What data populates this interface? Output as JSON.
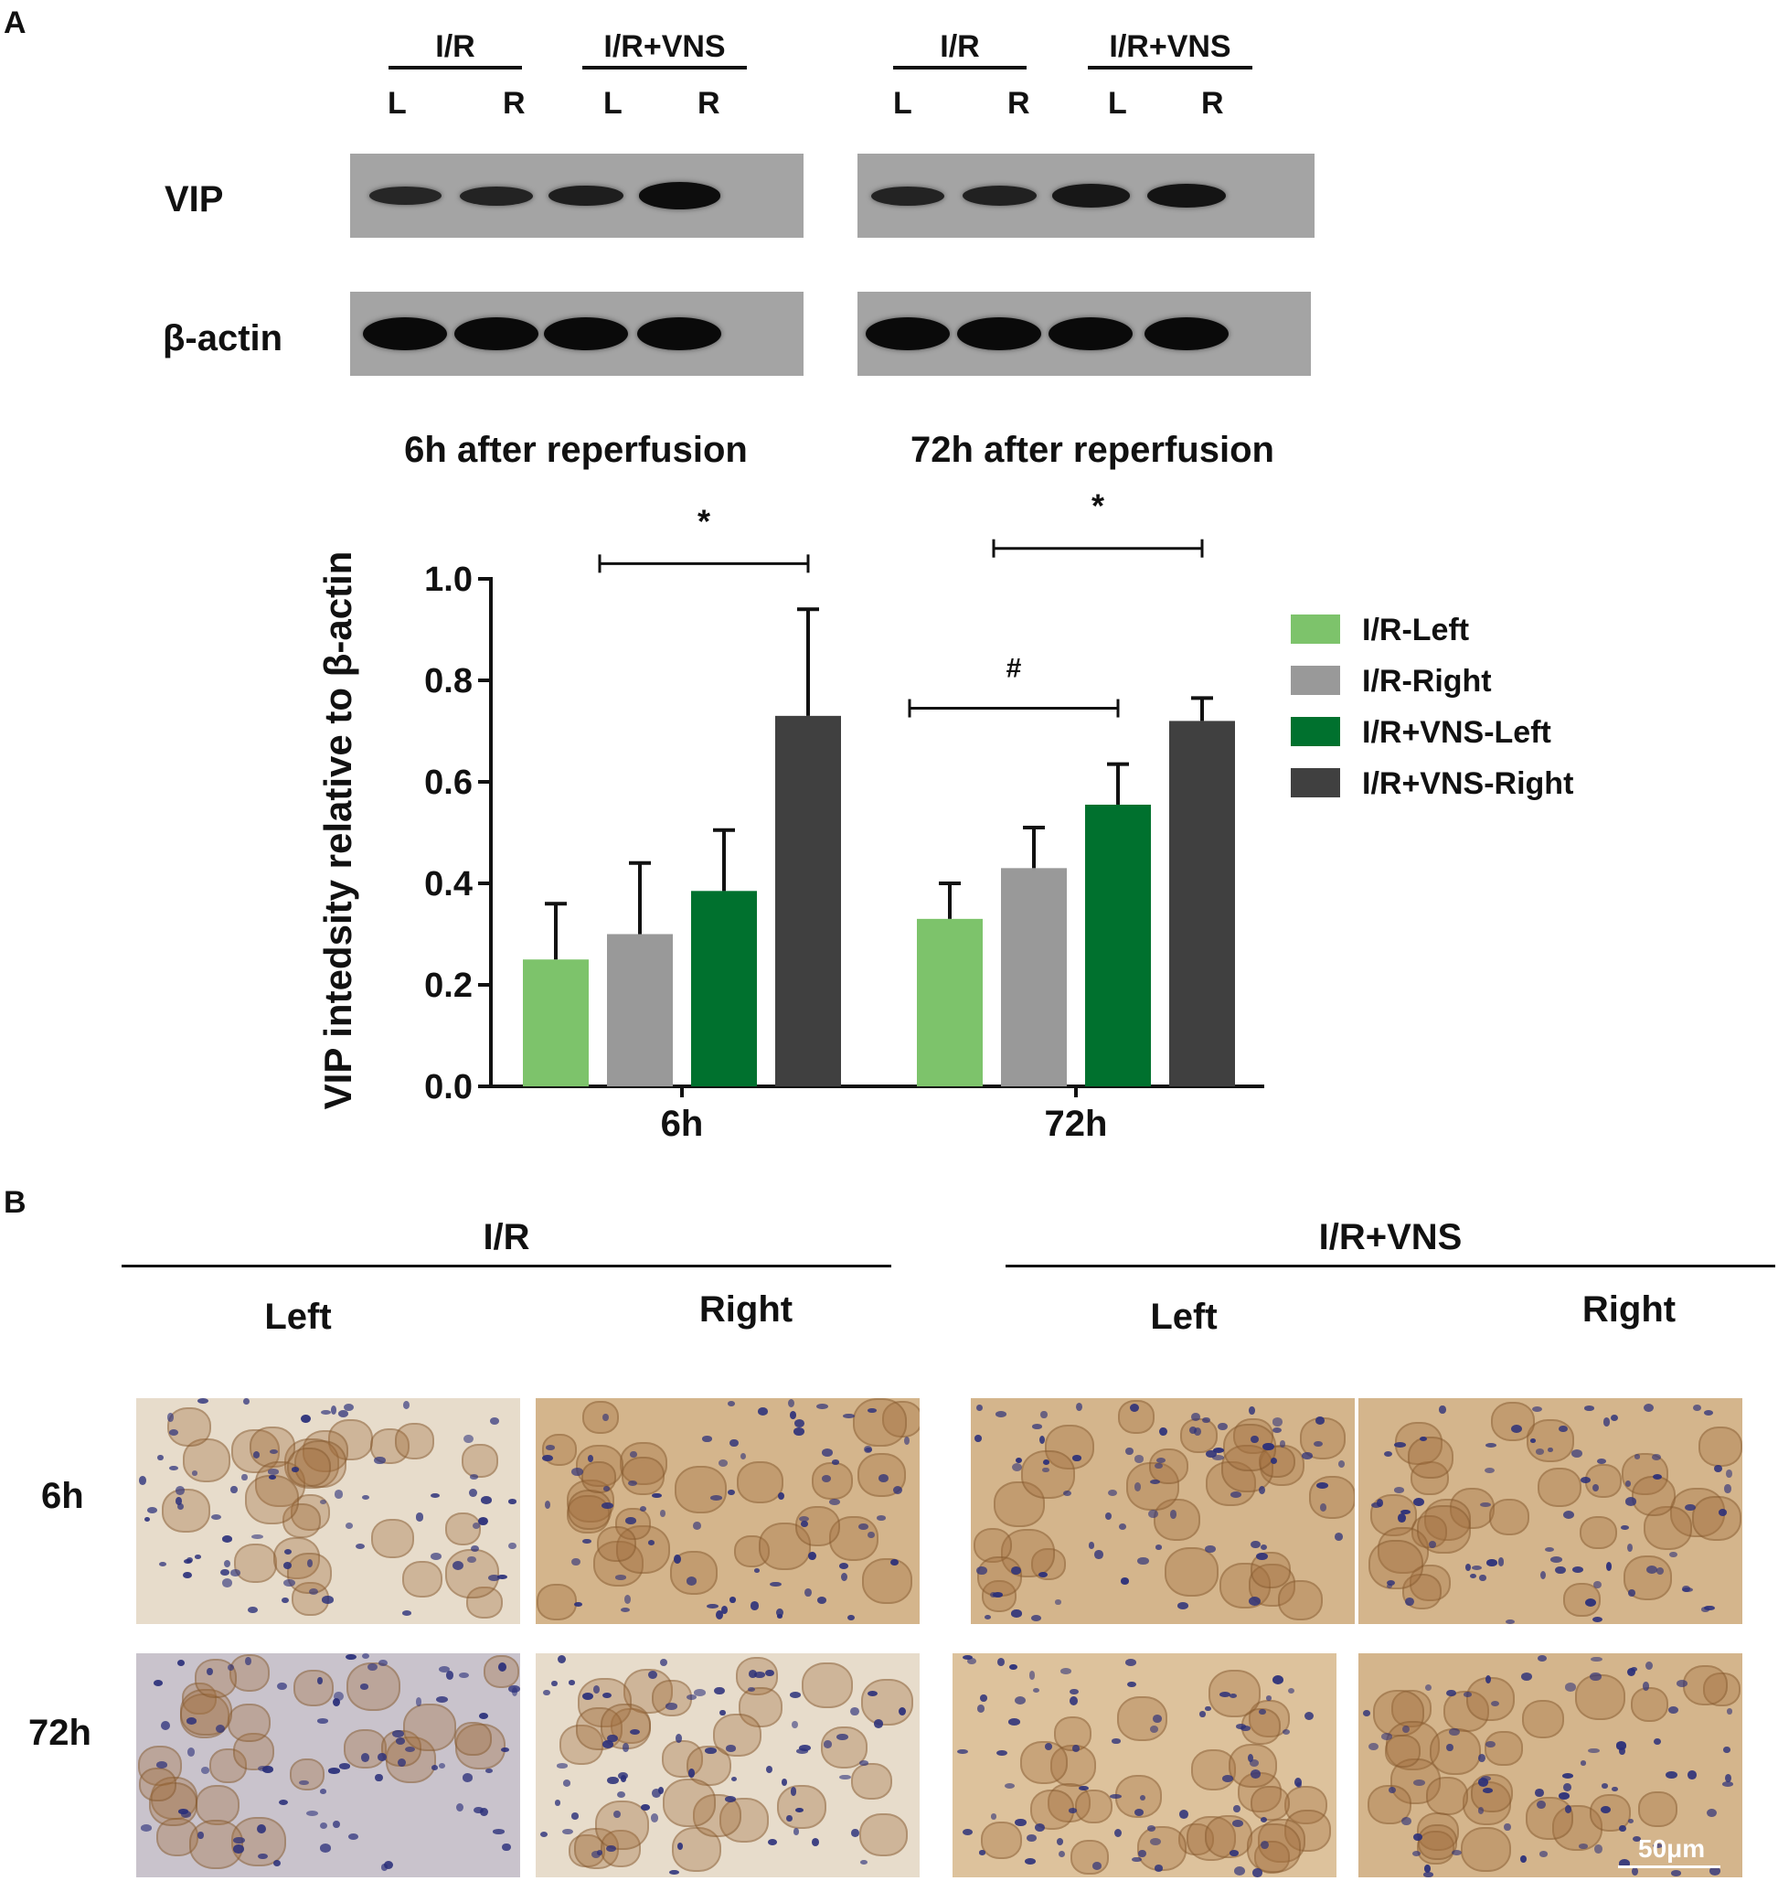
{
  "panel_a": {
    "letter": "A",
    "western_blot": {
      "groups": [
        "I/R",
        "I/R+VNS",
        "I/R",
        "I/R+VNS"
      ],
      "lanes": [
        "L",
        "R",
        "L",
        "R",
        "L",
        "R",
        "L",
        "R"
      ],
      "rows": [
        "VIP",
        "β-actin"
      ],
      "vip_band_intensity": [
        0.45,
        0.5,
        0.6,
        0.95,
        0.5,
        0.55,
        0.75,
        0.8
      ],
      "actin_band_intensity": [
        1,
        1,
        1,
        1,
        1,
        1,
        1,
        1
      ]
    },
    "titles": [
      "6h after reperfusion",
      "72h after reperfusion"
    ]
  },
  "chart_data": {
    "type": "bar",
    "categories": [
      "6h",
      "72h"
    ],
    "ylabel": "VIP intedsity relative to β-actin",
    "xlabel": "",
    "ylim": [
      0,
      1.0
    ],
    "yticks": [
      "0.0",
      "0.2",
      "0.4",
      "0.6",
      "0.8",
      "1.0"
    ],
    "series": [
      {
        "name": "I/R-Left",
        "color": "#7dc36b",
        "values": [
          0.25,
          0.33
        ],
        "errors": [
          0.11,
          0.07
        ]
      },
      {
        "name": "I/R-Right",
        "color": "#999999",
        "values": [
          0.3,
          0.43
        ],
        "errors": [
          0.14,
          0.08
        ]
      },
      {
        "name": "I/R+VNS-Left",
        "color": "#00712e",
        "values": [
          0.385,
          0.555
        ],
        "errors": [
          0.12,
          0.08
        ]
      },
      {
        "name": "I/R+VNS-Right",
        "color": "#404040",
        "values": [
          0.73,
          0.72
        ],
        "errors": [
          0.21,
          0.045
        ]
      }
    ],
    "annotations": [
      {
        "label": "*",
        "group": 0,
        "from_series": 1,
        "to_series": 3,
        "y": 1.03
      },
      {
        "label": "*",
        "group": 1,
        "from_series": 1,
        "to_series": 3,
        "y": 1.06
      },
      {
        "label": "#",
        "group": 1,
        "from_series": 0,
        "to_series": 2,
        "y": 0.745
      }
    ],
    "legend_position": "right"
  },
  "panel_b": {
    "letter": "B",
    "groups": [
      "I/R",
      "I/R+VNS"
    ],
    "columns": [
      "Left",
      "Right",
      "Left",
      "Right"
    ],
    "rows": [
      "6h",
      "72h"
    ],
    "scale_bar": "50μm"
  }
}
